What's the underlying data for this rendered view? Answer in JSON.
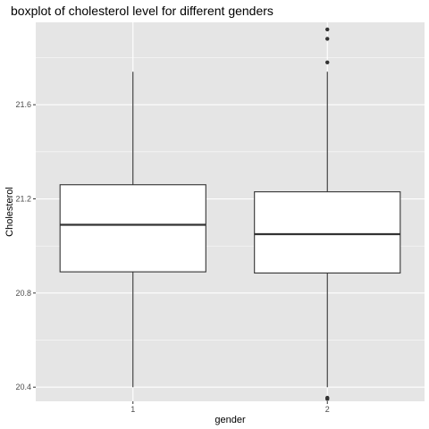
{
  "chart_data": {
    "type": "boxplot",
    "title": "boxplot of cholesterol level for different genders",
    "xlabel": "gender",
    "ylabel": "Cholesterol",
    "ylim": [
      20.34,
      21.95
    ],
    "y_ticks": [
      20.4,
      20.8,
      21.2,
      21.6
    ],
    "y_tick_labels": [
      "20.4",
      "20.8",
      "21.2",
      "21.6"
    ],
    "categories": [
      "1",
      "2"
    ],
    "boxes": [
      {
        "category": "1",
        "whisker_low": 20.4,
        "q1": 20.89,
        "median": 21.09,
        "q3": 21.26,
        "whisker_high": 21.74,
        "outliers": []
      },
      {
        "category": "2",
        "whisker_low": 20.4,
        "q1": 20.885,
        "median": 21.05,
        "q3": 21.23,
        "whisker_high": 21.74,
        "outliers": [
          21.92,
          21.88,
          21.78,
          20.355,
          20.35
        ]
      }
    ],
    "colors": {
      "panel": "#e5e5e5",
      "grid_major": "#ffffff",
      "box_fill": "#ffffff",
      "line": "#333333",
      "outlier": "#333333"
    }
  }
}
